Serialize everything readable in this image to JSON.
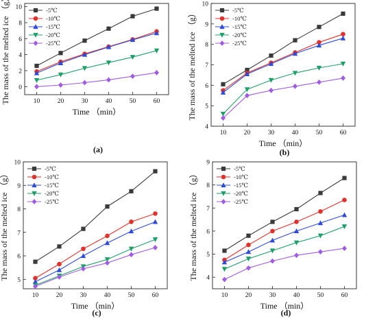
{
  "chart_data": [
    {
      "type": "line",
      "panel_label": "(a)",
      "xlabel": "Time （min）",
      "ylabel": "The  mass  of the melted ice （g）",
      "x": [
        10,
        20,
        30,
        40,
        50,
        60
      ],
      "xlim": [
        5,
        65
      ],
      "ylim": [
        -1,
        10.4
      ],
      "xticks": [
        10,
        20,
        30,
        40,
        50,
        60
      ],
      "yticks": [
        0,
        2,
        4,
        6,
        8,
        10
      ],
      "legend_position": "top-left",
      "series": [
        {
          "name": "-5℃",
          "color": "#3a3a3a",
          "marker": "square",
          "values": [
            2.6,
            4.2,
            5.75,
            7.25,
            8.8,
            9.75
          ]
        },
        {
          "name": "-10℃",
          "color": "#e0322d",
          "marker": "circle",
          "values": [
            1.9,
            3.1,
            4.1,
            5.0,
            5.9,
            6.9
          ]
        },
        {
          "name": "-15℃",
          "color": "#2e4bd6",
          "marker": "triangle-up",
          "values": [
            1.7,
            2.95,
            4.0,
            4.95,
            5.85,
            6.7
          ]
        },
        {
          "name": "-20℃",
          "color": "#1f9e6a",
          "marker": "triangle-down",
          "values": [
            0.8,
            1.5,
            2.3,
            3.0,
            3.7,
            4.5
          ]
        },
        {
          "name": "-25℃",
          "color": "#a05ce0",
          "marker": "diamond",
          "values": [
            0.0,
            0.2,
            0.5,
            0.85,
            1.3,
            1.75
          ]
        }
      ]
    },
    {
      "type": "line",
      "panel_label": "(b)",
      "xlabel": "Time （min）",
      "ylabel": "The  mass  of the melted ice （g）",
      "x": [
        10,
        20,
        30,
        40,
        50,
        60
      ],
      "xlim": [
        5,
        65
      ],
      "ylim": [
        4,
        10
      ],
      "xticks": [
        10,
        20,
        30,
        40,
        50,
        60
      ],
      "yticks": [
        4,
        5,
        6,
        7,
        8,
        9,
        10
      ],
      "legend_position": "top-left",
      "series": [
        {
          "name": "-5℃",
          "color": "#3a3a3a",
          "marker": "square",
          "values": [
            6.05,
            6.75,
            7.45,
            8.2,
            8.85,
            9.5
          ]
        },
        {
          "name": "-10℃",
          "color": "#e0322d",
          "marker": "circle",
          "values": [
            5.75,
            6.6,
            7.1,
            7.6,
            8.1,
            8.5
          ]
        },
        {
          "name": "-15℃",
          "color": "#2e4bd6",
          "marker": "triangle-up",
          "values": [
            5.65,
            6.55,
            7.05,
            7.55,
            7.95,
            8.3
          ]
        },
        {
          "name": "-20℃",
          "color": "#1f9e6a",
          "marker": "triangle-down",
          "values": [
            4.6,
            5.8,
            6.25,
            6.6,
            6.85,
            7.05
          ]
        },
        {
          "name": "-25℃",
          "color": "#a05ce0",
          "marker": "diamond",
          "values": [
            4.4,
            5.5,
            5.75,
            5.95,
            6.15,
            6.35
          ]
        }
      ]
    },
    {
      "type": "line",
      "panel_label": "(c)",
      "xlabel": "Time （min）",
      "ylabel": "The  mass  of the melted ice （g）",
      "x": [
        10,
        20,
        30,
        40,
        50,
        60
      ],
      "xlim": [
        5,
        65
      ],
      "ylim": [
        4.6,
        10
      ],
      "xticks": [
        10,
        20,
        30,
        40,
        50,
        60
      ],
      "yticks": [
        5,
        6,
        7,
        8,
        9,
        10
      ],
      "legend_position": "top-left",
      "series": [
        {
          "name": "-5℃",
          "color": "#3a3a3a",
          "marker": "square",
          "values": [
            5.75,
            6.4,
            7.15,
            8.1,
            8.75,
            9.6
          ]
        },
        {
          "name": "-10℃",
          "color": "#e0322d",
          "marker": "circle",
          "values": [
            5.05,
            5.65,
            6.3,
            6.85,
            7.45,
            7.8
          ]
        },
        {
          "name": "-15℃",
          "color": "#2e4bd6",
          "marker": "triangle-up",
          "values": [
            4.9,
            5.4,
            6.0,
            6.55,
            7.05,
            7.45
          ]
        },
        {
          "name": "-20℃",
          "color": "#1f9e6a",
          "marker": "triangle-down",
          "values": [
            4.75,
            5.15,
            5.55,
            5.85,
            6.3,
            6.7
          ]
        },
        {
          "name": "-25℃",
          "color": "#a05ce0",
          "marker": "diamond",
          "values": [
            4.7,
            5.1,
            5.45,
            5.7,
            6.05,
            6.35
          ]
        }
      ]
    },
    {
      "type": "line",
      "panel_label": "(d)",
      "xlabel": "Time （min）",
      "ylabel": "The  mass  of the melted ice （g）",
      "x": [
        10,
        20,
        30,
        40,
        50,
        60
      ],
      "xlim": [
        5,
        65
      ],
      "ylim": [
        3.5,
        9
      ],
      "xticks": [
        10,
        20,
        30,
        40,
        50,
        60
      ],
      "yticks": [
        4,
        5,
        6,
        7,
        8,
        9
      ],
      "legend_position": "top-left",
      "series": [
        {
          "name": "-5℃",
          "color": "#3a3a3a",
          "marker": "square",
          "values": [
            5.15,
            5.8,
            6.4,
            6.95,
            7.65,
            8.3
          ]
        },
        {
          "name": "-10℃",
          "color": "#e0322d",
          "marker": "circle",
          "values": [
            4.75,
            5.4,
            6.0,
            6.4,
            6.85,
            7.35
          ]
        },
        {
          "name": "-15℃",
          "color": "#2e4bd6",
          "marker": "triangle-up",
          "values": [
            4.65,
            5.1,
            5.6,
            6.0,
            6.35,
            6.7
          ]
        },
        {
          "name": "-20℃",
          "color": "#1f9e6a",
          "marker": "triangle-down",
          "values": [
            4.35,
            4.8,
            5.15,
            5.5,
            5.8,
            6.2
          ]
        },
        {
          "name": "-25℃",
          "color": "#a05ce0",
          "marker": "diamond",
          "values": [
            3.9,
            4.4,
            4.7,
            4.95,
            5.1,
            5.25
          ]
        }
      ]
    }
  ]
}
